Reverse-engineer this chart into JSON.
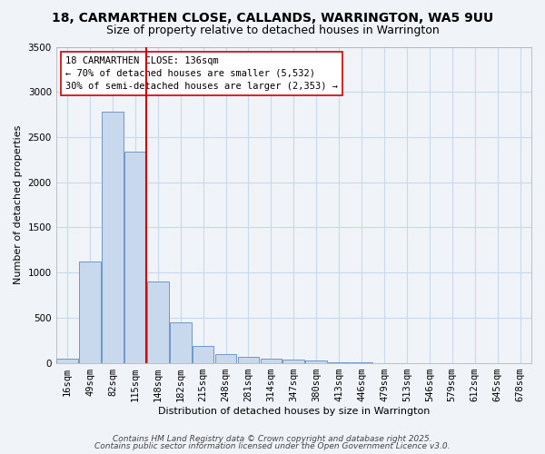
{
  "title1": "18, CARMARTHEN CLOSE, CALLANDS, WARRINGTON, WA5 9UU",
  "title2": "Size of property relative to detached houses in Warrington",
  "xlabel": "Distribution of detached houses by size in Warrington",
  "ylabel": "Number of detached properties",
  "categories": [
    "16sqm",
    "49sqm",
    "82sqm",
    "115sqm",
    "148sqm",
    "182sqm",
    "215sqm",
    "248sqm",
    "281sqm",
    "314sqm",
    "347sqm",
    "380sqm",
    "413sqm",
    "446sqm",
    "479sqm",
    "513sqm",
    "546sqm",
    "579sqm",
    "612sqm",
    "645sqm",
    "678sqm"
  ],
  "values": [
    50,
    1120,
    2780,
    2340,
    900,
    450,
    185,
    95,
    70,
    50,
    40,
    25,
    5,
    5,
    0,
    0,
    0,
    0,
    0,
    0,
    0
  ],
  "bar_color": "#c8d8ed",
  "bar_edge_color": "#7097c8",
  "vline_color": "#cc0000",
  "vline_x": 3.5,
  "annotation_line1": "18 CARMARTHEN CLOSE: 136sqm",
  "annotation_line2": "← 70% of detached houses are smaller (5,532)",
  "annotation_line3": "30% of semi-detached houses are larger (2,353) →",
  "annotation_box_color": "#cc0000",
  "ylim": [
    0,
    3500
  ],
  "yticks": [
    0,
    500,
    1000,
    1500,
    2000,
    2500,
    3000,
    3500
  ],
  "bg_color": "#f0f4f8",
  "plot_bg_color": "#f0f4f8",
  "grid_color": "#c8d8ed",
  "footer1": "Contains HM Land Registry data © Crown copyright and database right 2025.",
  "footer2": "Contains public sector information licensed under the Open Government Licence v3.0.",
  "title1_fontsize": 10,
  "title2_fontsize": 9,
  "annotation_fontsize": 7.5,
  "footer_fontsize": 6.5,
  "axis_label_fontsize": 8,
  "tick_fontsize": 7.5
}
